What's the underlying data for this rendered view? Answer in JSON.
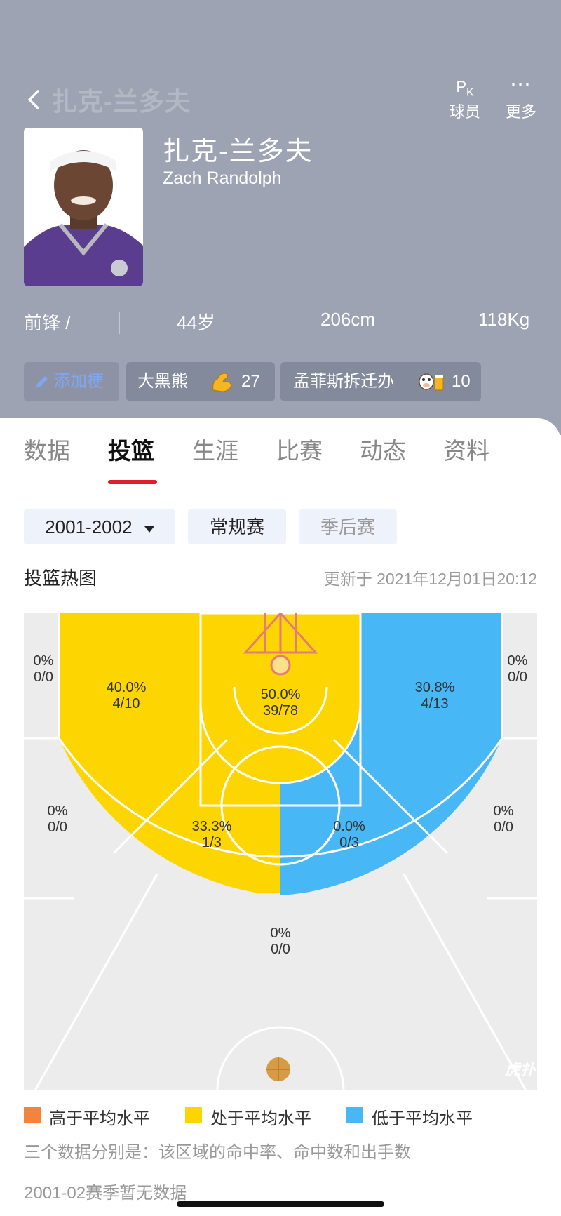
{
  "header": {
    "nav_title": "扎克-兰多夫",
    "actions": [
      {
        "glyph": "PK",
        "label": "球员"
      },
      {
        "glyph": "⋯",
        "label": "更多"
      }
    ],
    "name_cn": "扎克-兰多夫",
    "name_en": "Zach Randolph",
    "position": "前锋 /",
    "age": "44岁",
    "height": "206cm",
    "weight": "118Kg",
    "tags": [
      {
        "label": "添加梗",
        "icon": "pencil-icon"
      },
      {
        "label": "大黑熊",
        "icon": "flexed-bicep-icon",
        "count": "27"
      },
      {
        "label": "孟菲斯拆迁办",
        "icon": "cow-beer-icon",
        "count": "10"
      }
    ]
  },
  "tabs": [
    "数据",
    "投篮",
    "生涯",
    "比赛",
    "动态",
    "资料"
  ],
  "active_tab": "投篮",
  "filters": {
    "season": "2001-2002",
    "regular": "常规赛",
    "playoffs": "季后赛"
  },
  "heatmap": {
    "title": "投篮热图",
    "updated": "更新于 2021年12月01日20:12",
    "zones": [
      {
        "id": "left-corner-3",
        "pct": "0%",
        "made_att": "0/0",
        "level": "none"
      },
      {
        "id": "right-corner-3",
        "pct": "0%",
        "made_att": "0/0",
        "level": "none"
      },
      {
        "id": "left-baseline-mid",
        "pct": "40.0%",
        "made_att": "4/10",
        "level": "average"
      },
      {
        "id": "paint",
        "pct": "50.0%",
        "made_att": "39/78",
        "level": "average"
      },
      {
        "id": "right-baseline-mid",
        "pct": "30.8%",
        "made_att": "4/13",
        "level": "below"
      },
      {
        "id": "left-wing-3",
        "pct": "0%",
        "made_att": "0/0",
        "level": "none"
      },
      {
        "id": "right-wing-3",
        "pct": "0%",
        "made_att": "0/0",
        "level": "none"
      },
      {
        "id": "left-elbow-mid",
        "pct": "33.3%",
        "made_att": "1/3",
        "level": "average"
      },
      {
        "id": "right-elbow-mid",
        "pct": "0.0%",
        "made_att": "0/3",
        "level": "below"
      },
      {
        "id": "top-key-3",
        "pct": "0%",
        "made_att": "0/0",
        "level": "none"
      }
    ],
    "colors": {
      "above": "#f5833a",
      "average": "#fdd500",
      "below": "#47b8f5",
      "none": "#ececec"
    }
  },
  "legend": [
    {
      "label": "高于平均水平",
      "color": "#f5833a"
    },
    {
      "label": "处于平均水平",
      "color": "#fdd500"
    },
    {
      "label": "低于平均水平",
      "color": "#47b8f5"
    }
  ],
  "notes": {
    "explain": "三个数据分别是：该区域的命中率、命中数和出手数",
    "no_data": "2001-02赛季暂无数据"
  }
}
